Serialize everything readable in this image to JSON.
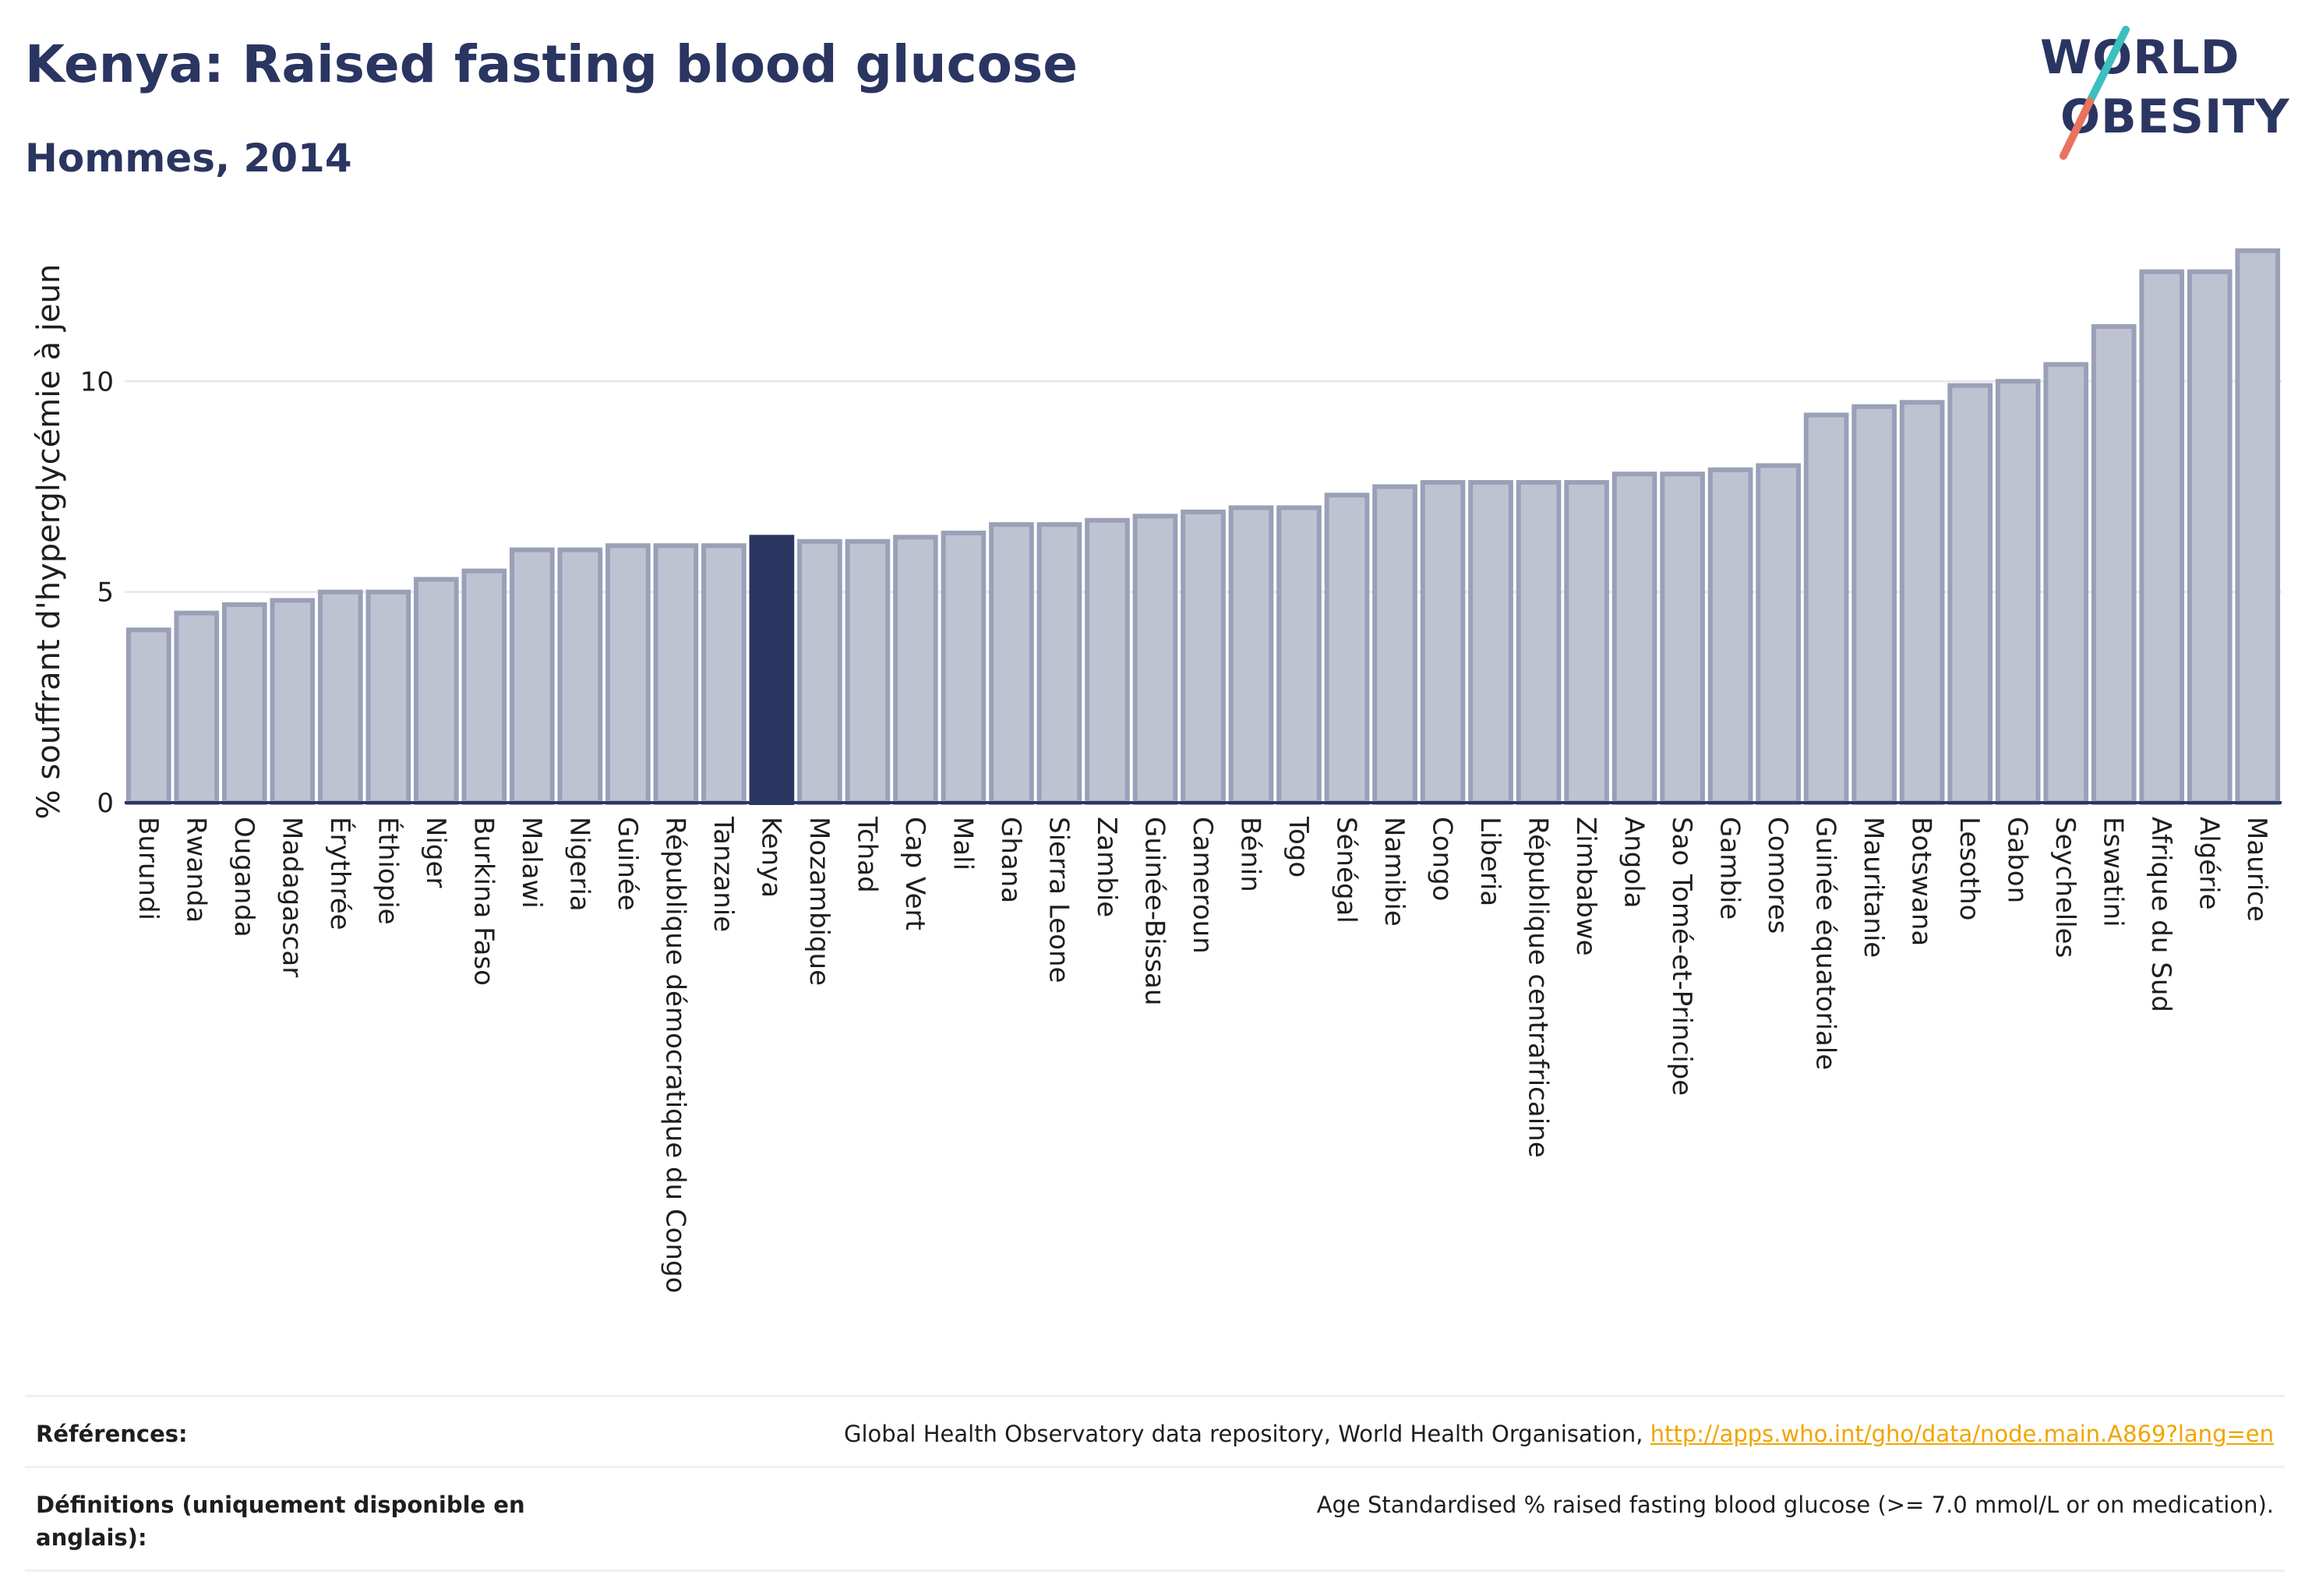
{
  "header": {
    "title": "Kenya: Raised fasting blood glucose",
    "subtitle": "Hommes, 2014",
    "logo_line1": "WORLD",
    "logo_line2": "OBESITY"
  },
  "colors": {
    "bar": "#bfc3d1",
    "bar_border": "#9aa0b8",
    "highlight": "#2a3561",
    "axis": "#2a3561",
    "grid": "#e6e8ee"
  },
  "chart_data": {
    "type": "bar",
    "title": "Kenya: Raised fasting blood glucose",
    "subtitle": "Hommes, 2014",
    "ylabel": "% souffrant d'hyperglycémie à jeun",
    "xlabel": "",
    "ylim": [
      0,
      13.5
    ],
    "yticks": [
      0,
      5,
      10
    ],
    "grid": true,
    "highlight": "Kenya",
    "categories": [
      "Burundi",
      "Rwanda",
      "Ouganda",
      "Madagascar",
      "Érythrée",
      "Éthiopie",
      "Niger",
      "Burkina Faso",
      "Malawi",
      "Nigeria",
      "Guinée",
      "République démocratique du Congo",
      "Tanzanie",
      "Kenya",
      "Mozambique",
      "Tchad",
      "Cap Vert",
      "Mali",
      "Ghana",
      "Sierra Leone",
      "Zambie",
      "Guinée-Bissau",
      "Cameroun",
      "Bénin",
      "Togo",
      "Sénégal",
      "Namibie",
      "Congo",
      "Liberia",
      "République centrafricaine",
      "Zimbabwe",
      "Angola",
      "Sao Tomé-et-Principe",
      "Gambie",
      "Comores",
      "Guinée équatoriale",
      "Mauritanie",
      "Botswana",
      "Lesotho",
      "Gabon",
      "Seychelles",
      "Eswatini",
      "Afrique du Sud",
      "Algérie",
      "Maurice"
    ],
    "values": [
      4.1,
      4.5,
      4.7,
      4.8,
      5.0,
      5.0,
      5.3,
      5.5,
      6.0,
      6.0,
      6.1,
      6.1,
      6.1,
      6.3,
      6.2,
      6.2,
      6.3,
      6.4,
      6.6,
      6.6,
      6.7,
      6.8,
      6.9,
      7.0,
      7.0,
      7.3,
      7.5,
      7.6,
      7.6,
      7.6,
      7.6,
      7.8,
      7.8,
      7.9,
      8.0,
      9.2,
      9.4,
      9.5,
      9.9,
      10.0,
      10.4,
      11.3,
      12.6,
      12.6,
      13.1
    ]
  },
  "footer": {
    "references_label": "Références:",
    "references_text": "Global Health Observatory data repository, World Health Organisation, ",
    "references_link": "http://apps.who.int/gho/data/node.main.A869?lang=en",
    "definitions_label": "Définitions (uniquement disponible en anglais):",
    "definitions_text": "Age Standardised % raised fasting blood glucose (>= 7.0 mmol/L or on medication)."
  }
}
